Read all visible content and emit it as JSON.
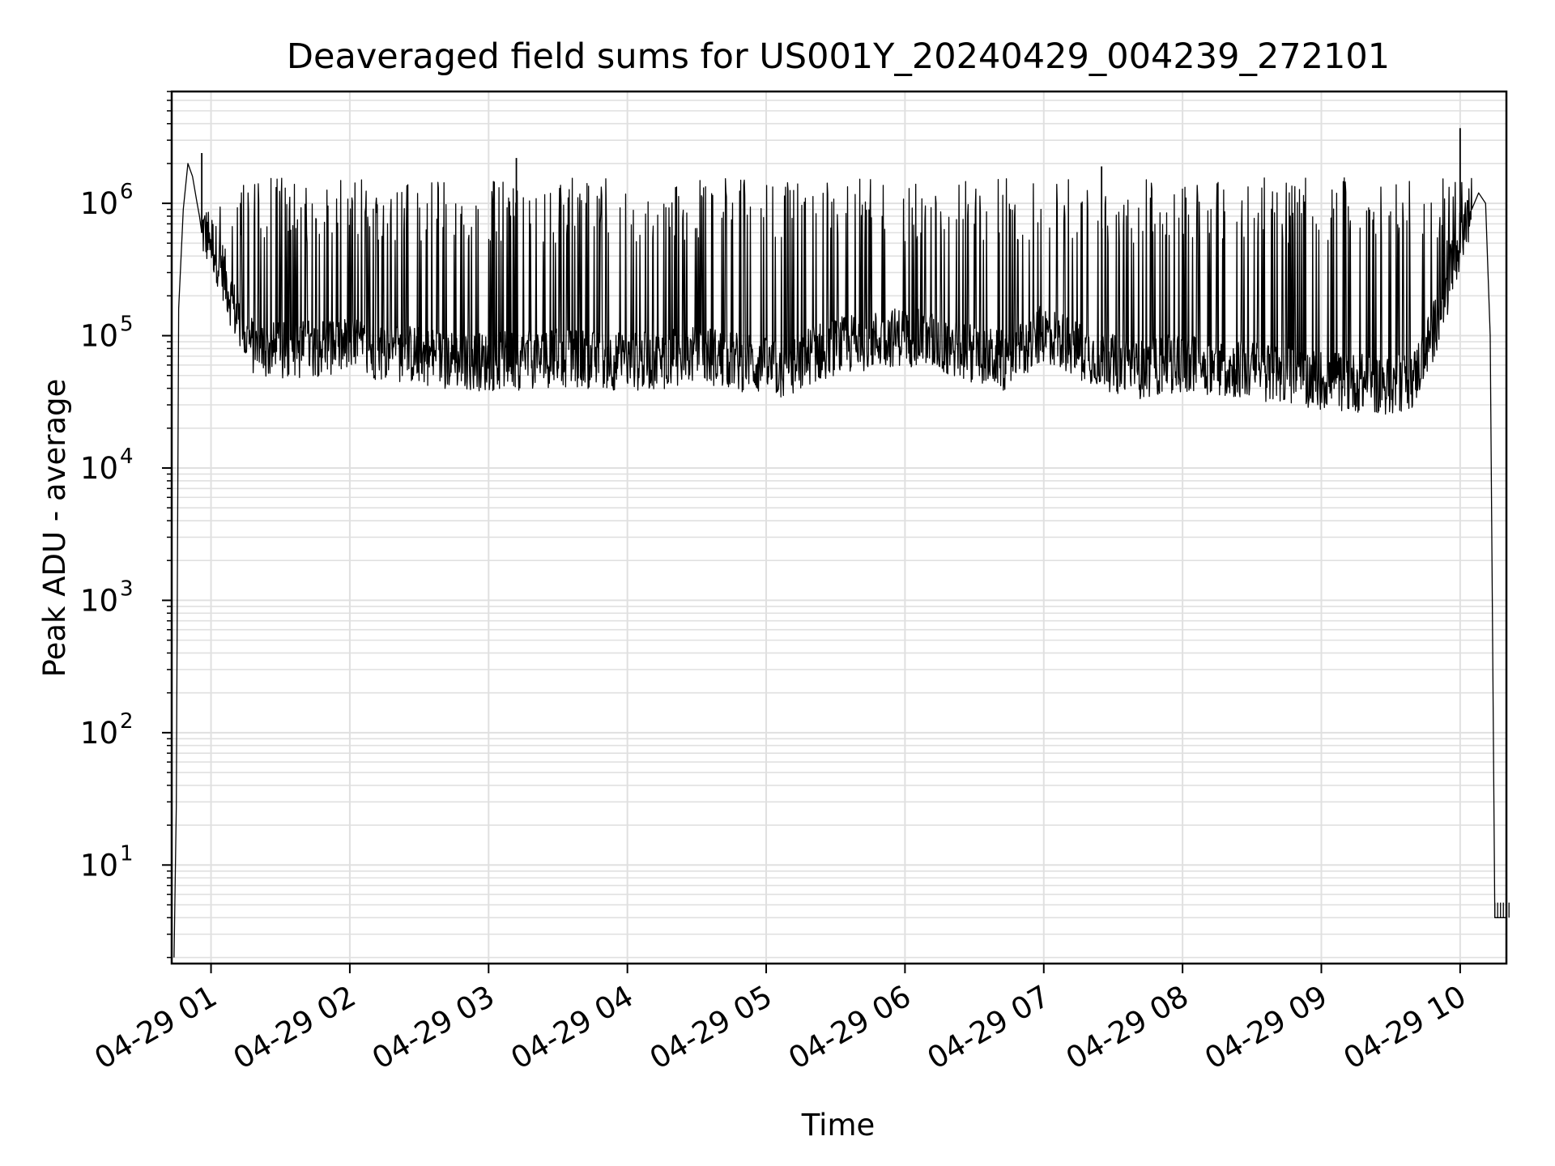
{
  "chart_data": {
    "type": "line",
    "title": "Deaveraged field sums for US001Y_20240429_004239_272101",
    "xlabel": "Time",
    "ylabel": "Peak ADU - average",
    "y_scale": "log",
    "ylim": [
      1.8,
      7000000
    ],
    "xlim": [
      "04-29 00:43",
      "04-29 10:20"
    ],
    "x_tick_labels": [
      "04-29 01",
      "04-29 02",
      "04-29 03",
      "04-29 04",
      "04-29 05",
      "04-29 06",
      "04-29 07",
      "04-29 08",
      "04-29 09",
      "04-29 10"
    ],
    "y_ticks": [
      {
        "base": "10",
        "exp": "1"
      },
      {
        "base": "10",
        "exp": "2"
      },
      {
        "base": "10",
        "exp": "3"
      },
      {
        "base": "10",
        "exp": "4"
      },
      {
        "base": "10",
        "exp": "5"
      },
      {
        "base": "10",
        "exp": "6"
      }
    ],
    "grid": "major and minor",
    "line_color": "#000000",
    "grid_color": "#e0e0e0",
    "series": [
      {
        "x": [
          "04-29 00:44",
          "04-29 00:45",
          "04-29 00:46",
          "04-29 00:48",
          "04-29 00:50",
          "04-29 00:52",
          "04-29 00:54",
          "04-29 00:55",
          "04-29 00:56",
          "04-29 01:00",
          "04-29 01:05",
          "04-29 01:10",
          "04-29 01:15",
          "04-29 01:20",
          "04-29 01:30",
          "04-29 01:40",
          "04-29 01:50",
          "04-29 02:00",
          "04-29 02:15",
          "04-29 02:30",
          "04-29 02:45",
          "04-29 03:00",
          "04-29 03:15",
          "04-29 03:30",
          "04-29 03:45",
          "04-29 04:00",
          "04-29 04:15",
          "04-29 04:30",
          "04-29 04:45",
          "04-29 05:00",
          "04-29 05:10",
          "04-29 05:20",
          "04-29 05:40",
          "04-29 06:00",
          "04-29 06:15",
          "04-29 06:30",
          "04-29 06:45",
          "04-29 07:00",
          "04-29 07:15",
          "04-29 07:30",
          "04-29 07:40",
          "04-29 08:00",
          "04-29 08:15",
          "04-29 08:30",
          "04-29 08:45",
          "04-29 09:00",
          "04-29 09:15",
          "04-29 09:30",
          "04-29 09:40",
          "04-29 09:50",
          "04-29 10:00",
          "04-29 10:05",
          "04-29 10:08",
          "04-29 10:11",
          "04-29 10:13",
          "04-29 10:15",
          "04-29 10:20"
        ],
        "y": [
          2,
          28,
          160000,
          900000,
          2000000,
          1600000,
          1000000,
          800000,
          600000,
          500000,
          300000,
          150000,
          90000,
          75000,
          72000,
          75000,
          80000,
          78000,
          72000,
          68000,
          62000,
          60000,
          62000,
          65000,
          63000,
          60000,
          62000,
          70000,
          62000,
          55000,
          50000,
          70000,
          85000,
          95000,
          82000,
          70000,
          60000,
          100000,
          75000,
          58000,
          52000,
          60000,
          55000,
          52000,
          48000,
          44000,
          42000,
          40000,
          45000,
          120000,
          500000,
          900000,
          1200000,
          1000000,
          100000,
          4,
          4
        ]
      }
    ],
    "spikes": {
      "baseline": "x/y above",
      "peak_range": [
        500000,
        2200000
      ],
      "notable_peaks": [
        {
          "x": "04-29 00:56",
          "y": 2400000
        },
        {
          "x": "04-29 03:12",
          "y": 2200000
        },
        {
          "x": "04-29 07:25",
          "y": 1900000
        },
        {
          "x": "04-29 10:00",
          "y": 3700000
        }
      ]
    }
  }
}
